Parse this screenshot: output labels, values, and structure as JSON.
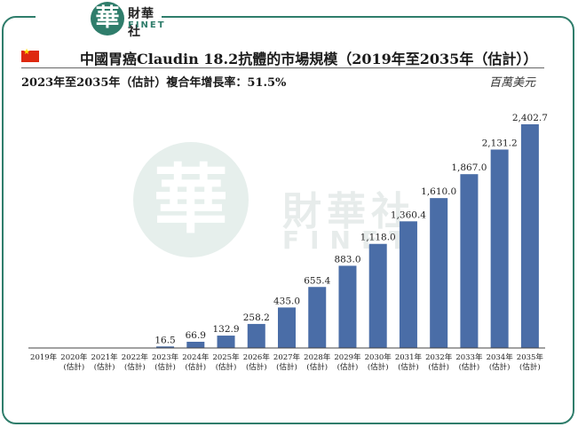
{
  "brand": {
    "seal_char": "華",
    "name_cn": "財華社",
    "name_en": "FINET",
    "primary_color": "#2f7d6b"
  },
  "header": {
    "flag": "china-flag",
    "title": "中國胃癌Claudin 18.2抗體的市場規模（2019年至2035年（估計））",
    "subtitle": "2023年至2035年（估計）複合年增長率：51.5%",
    "unit": "百萬美元"
  },
  "chart_data": {
    "type": "bar",
    "title": "中國胃癌Claudin 18.2抗體的市場規模（2019年至2035年（估計））",
    "subtitle": "2023年至2035年（估計）複合年增長率：51.5%",
    "ylabel": "百萬美元",
    "xlabel": "",
    "categories": [
      "2019年",
      "2020年",
      "2021年",
      "2022年",
      "2023年",
      "2024年",
      "2025年",
      "2026年",
      "2027年",
      "2028年",
      "2029年",
      "2030年",
      "2031年",
      "2032年",
      "2033年",
      "2034年",
      "2035年"
    ],
    "category_notes": [
      "",
      "(估計)",
      "(估計)",
      "(估計)",
      "(估計)",
      "(估計)",
      "(估計)",
      "(估計)",
      "(估計)",
      "(估計)",
      "(估計)",
      "(估計)",
      "(估計)",
      "(估計)",
      "(估計)",
      "(估計)",
      "(估計)"
    ],
    "values": [
      0,
      0,
      0,
      0,
      16.5,
      66.9,
      132.9,
      258.2,
      435.0,
      655.4,
      883.0,
      1118.0,
      1360.4,
      1610.0,
      1867.0,
      2131.2,
      2402.7
    ],
    "data_labels": [
      "",
      "",
      "",
      "",
      "16.5",
      "66.9",
      "132.9",
      "258.2",
      "435.0",
      "655.4",
      "883.0",
      "1,118.0",
      "1,360.4",
      "1,610.0",
      "1,867.0",
      "2,131.2",
      "2,402.7"
    ],
    "ylim": [
      0,
      2402.7
    ],
    "grid": false,
    "bar_color": "#4a6da7"
  }
}
